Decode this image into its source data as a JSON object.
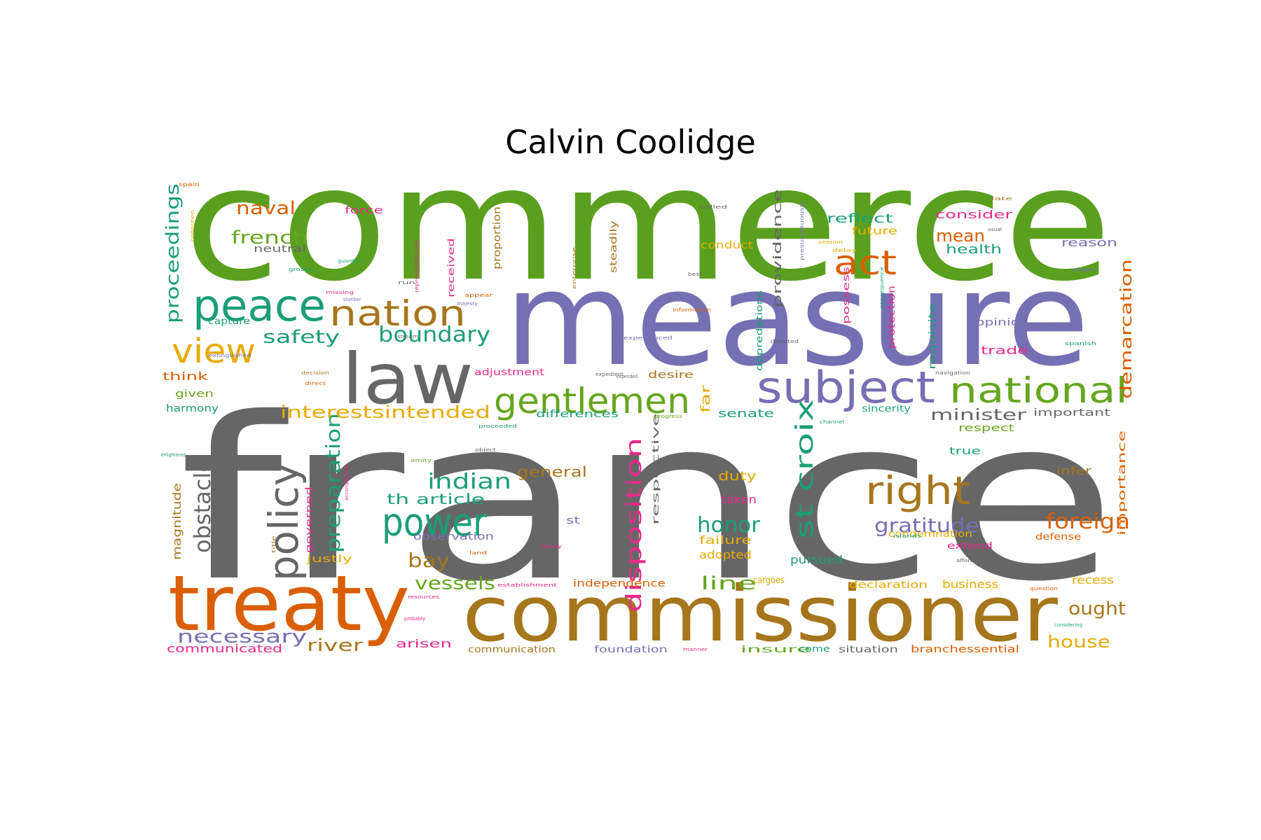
{
  "title": "Calvin Coolidge",
  "palette": {
    "green": "#5aa01e",
    "purple": "#7570b3",
    "gray": "#666666",
    "orange": "#d95f02",
    "brown": "#a6761d",
    "teal": "#1b9e77",
    "pink": "#e7298a",
    "gold": "#e6ab02",
    "lightgreen": "#66a61e"
  },
  "words": [
    {
      "text": "commerce",
      "color": "green"
    },
    {
      "text": "france",
      "color": "gray"
    },
    {
      "text": "measure",
      "color": "purple"
    },
    {
      "text": "commissioner",
      "color": "brown"
    },
    {
      "text": "treaty",
      "color": "orange"
    },
    {
      "text": "law",
      "color": "gray"
    },
    {
      "text": "peace",
      "color": "teal"
    },
    {
      "text": "nation",
      "color": "brown"
    },
    {
      "text": "subject",
      "color": "purple"
    },
    {
      "text": "national",
      "color": "lightgreen"
    },
    {
      "text": "gentlemen",
      "color": "lightgreen"
    },
    {
      "text": "right",
      "color": "brown"
    },
    {
      "text": "power",
      "color": "teal"
    },
    {
      "text": "policy",
      "color": "gray"
    },
    {
      "text": "view",
      "color": "gold"
    },
    {
      "text": "act",
      "color": "orange"
    },
    {
      "text": "st croix",
      "color": "teal"
    },
    {
      "text": "disposition",
      "color": "pink"
    },
    {
      "text": "obstacle",
      "color": "gray"
    },
    {
      "text": "preparation",
      "color": "teal"
    },
    {
      "text": "proceedings",
      "color": "teal"
    },
    {
      "text": "demarcation",
      "color": "orange"
    },
    {
      "text": "boundary",
      "color": "teal"
    },
    {
      "text": "indian",
      "color": "teal"
    },
    {
      "text": "gratitude",
      "color": "purple"
    },
    {
      "text": "foreign",
      "color": "orange"
    },
    {
      "text": "honor",
      "color": "teal"
    },
    {
      "text": "bay",
      "color": "brown"
    },
    {
      "text": "vessels",
      "color": "lightgreen"
    },
    {
      "text": "line",
      "color": "lightgreen"
    },
    {
      "text": "necessary",
      "color": "purple"
    },
    {
      "text": "river",
      "color": "brown"
    },
    {
      "text": "ought",
      "color": "brown"
    },
    {
      "text": "house",
      "color": "gold"
    },
    {
      "text": "safety",
      "color": "teal"
    },
    {
      "text": "french",
      "color": "lightgreen"
    },
    {
      "text": "naval",
      "color": "orange"
    },
    {
      "text": "mean",
      "color": "orange"
    },
    {
      "text": "interestsintended",
      "color": "gold"
    },
    {
      "text": "minister",
      "color": "gray"
    },
    {
      "text": "th article",
      "color": "teal"
    },
    {
      "text": "general",
      "color": "brown"
    },
    {
      "text": "magnitude",
      "color": "brown"
    },
    {
      "text": "providence",
      "color": "gray"
    },
    {
      "text": "reflect",
      "color": "teal"
    },
    {
      "text": "consider",
      "color": "pink"
    },
    {
      "text": "health",
      "color": "teal"
    },
    {
      "text": "reason",
      "color": "purple"
    },
    {
      "text": "future",
      "color": "gold"
    },
    {
      "text": "conduct",
      "color": "gold"
    },
    {
      "text": "far",
      "color": "gold"
    },
    {
      "text": "senate",
      "color": "teal"
    },
    {
      "text": "duty",
      "color": "gold"
    },
    {
      "text": "taken",
      "color": "pink"
    },
    {
      "text": "failure",
      "color": "gold"
    },
    {
      "text": "adopted",
      "color": "gold"
    },
    {
      "text": "pursued",
      "color": "teal"
    },
    {
      "text": "independence",
      "color": "orange"
    },
    {
      "text": "declaration",
      "color": "gold"
    },
    {
      "text": "business",
      "color": "gold"
    },
    {
      "text": "recess",
      "color": "gold"
    },
    {
      "text": "infer",
      "color": "brown"
    },
    {
      "text": "importance",
      "color": "orange"
    },
    {
      "text": "important",
      "color": "gray"
    },
    {
      "text": "respect",
      "color": "lightgreen"
    },
    {
      "text": "trade",
      "color": "pink"
    },
    {
      "text": "opinion",
      "color": "purple"
    },
    {
      "text": "requisite",
      "color": "teal"
    },
    {
      "text": "protection",
      "color": "pink"
    },
    {
      "text": "possess",
      "color": "pink"
    },
    {
      "text": "depredations",
      "color": "teal"
    },
    {
      "text": "differences",
      "color": "teal"
    },
    {
      "text": "adjustment",
      "color": "pink"
    },
    {
      "text": "desire",
      "color": "brown"
    },
    {
      "text": "respective",
      "color": "gray"
    },
    {
      "text": "observation",
      "color": "purple"
    },
    {
      "text": "condemnation",
      "color": "gold"
    },
    {
      "text": "extend",
      "color": "pink"
    },
    {
      "text": "defense",
      "color": "orange"
    },
    {
      "text": "communicated",
      "color": "pink"
    },
    {
      "text": "arisen",
      "color": "pink"
    },
    {
      "text": "communication",
      "color": "brown"
    },
    {
      "text": "foundation",
      "color": "purple"
    },
    {
      "text": "insure",
      "color": "lightgreen"
    },
    {
      "text": "come",
      "color": "teal"
    },
    {
      "text": "situation",
      "color": "gray"
    },
    {
      "text": "branchessential",
      "color": "orange"
    },
    {
      "text": "think",
      "color": "orange"
    },
    {
      "text": "given",
      "color": "lightgreen"
    },
    {
      "text": "harmony",
      "color": "teal"
    },
    {
      "text": "capture",
      "color": "teal"
    },
    {
      "text": "neutral",
      "color": "gray"
    },
    {
      "text": "force",
      "color": "pink"
    },
    {
      "text": "proportion",
      "color": "brown"
    },
    {
      "text": "steadily",
      "color": "brown"
    },
    {
      "text": "received",
      "color": "pink"
    },
    {
      "text": "governed",
      "color": "pink"
    },
    {
      "text": "justly",
      "color": "gold"
    },
    {
      "text": "st",
      "color": "purple"
    },
    {
      "text": "sincerity",
      "color": "teal"
    },
    {
      "text": "true",
      "color": "teal"
    },
    {
      "text": "cargoes",
      "color": "gold"
    },
    {
      "text": "spain",
      "color": "orange"
    },
    {
      "text": "collection",
      "color": "gold"
    },
    {
      "text": "groups",
      "color": "teal"
    },
    {
      "text": "missing",
      "color": "pink"
    },
    {
      "text": "extinguished",
      "color": "purple"
    },
    {
      "text": "decision",
      "color": "brown"
    },
    {
      "text": "direct",
      "color": "orange"
    },
    {
      "text": "enlightened",
      "color": "teal"
    },
    {
      "text": "amity",
      "color": "lightgreen"
    },
    {
      "text": "accomplished",
      "color": "pink"
    },
    {
      "text": "title",
      "color": "brown"
    },
    {
      "text": "land",
      "color": "orange"
    },
    {
      "text": "resources",
      "color": "pink"
    },
    {
      "text": "probably",
      "color": "pink"
    },
    {
      "text": "establishment",
      "color": "pink"
    },
    {
      "text": "question",
      "color": "orange"
    },
    {
      "text": "considering",
      "color": "teal"
    },
    {
      "text": "afford",
      "color": "gray"
    },
    {
      "text": "islands",
      "color": "teal"
    },
    {
      "text": "channel",
      "color": "teal"
    },
    {
      "text": "navigation",
      "color": "gray"
    },
    {
      "text": "spanish",
      "color": "teal"
    },
    {
      "text": "matter",
      "color": "purple"
    },
    {
      "text": "directed",
      "color": "gray"
    },
    {
      "text": "information",
      "color": "orange"
    },
    {
      "text": "experienced",
      "color": "purple"
    },
    {
      "text": "expedient",
      "color": "gray"
    },
    {
      "text": "expended",
      "color": "gray"
    },
    {
      "text": "progress",
      "color": "lightgreen"
    },
    {
      "text": "proceeded",
      "color": "teal"
    },
    {
      "text": "object",
      "color": "gray"
    },
    {
      "text": "family",
      "color": "pink"
    },
    {
      "text": "manner",
      "color": "pink"
    },
    {
      "text": "called",
      "color": "gray"
    },
    {
      "text": "usual",
      "color": "gray"
    },
    {
      "text": "late",
      "color": "brown"
    },
    {
      "text": "session",
      "color": "gold"
    },
    {
      "text": "delay",
      "color": "gold"
    },
    {
      "text": "best",
      "color": "gray"
    },
    {
      "text": "run",
      "color": "gray"
    },
    {
      "text": "stream",
      "color": "gray"
    },
    {
      "text": "appear",
      "color": "orange"
    },
    {
      "text": "majesty",
      "color": "purple"
    },
    {
      "text": "representativesi",
      "color": "pink"
    },
    {
      "text": "enterprise",
      "color": "brown"
    },
    {
      "text": "consequence",
      "color": "teal"
    },
    {
      "text": "presumptuously",
      "color": "purple"
    },
    {
      "text": "guardian",
      "color": "teal"
    },
    {
      "text": "slumber",
      "color": "purple"
    }
  ]
}
